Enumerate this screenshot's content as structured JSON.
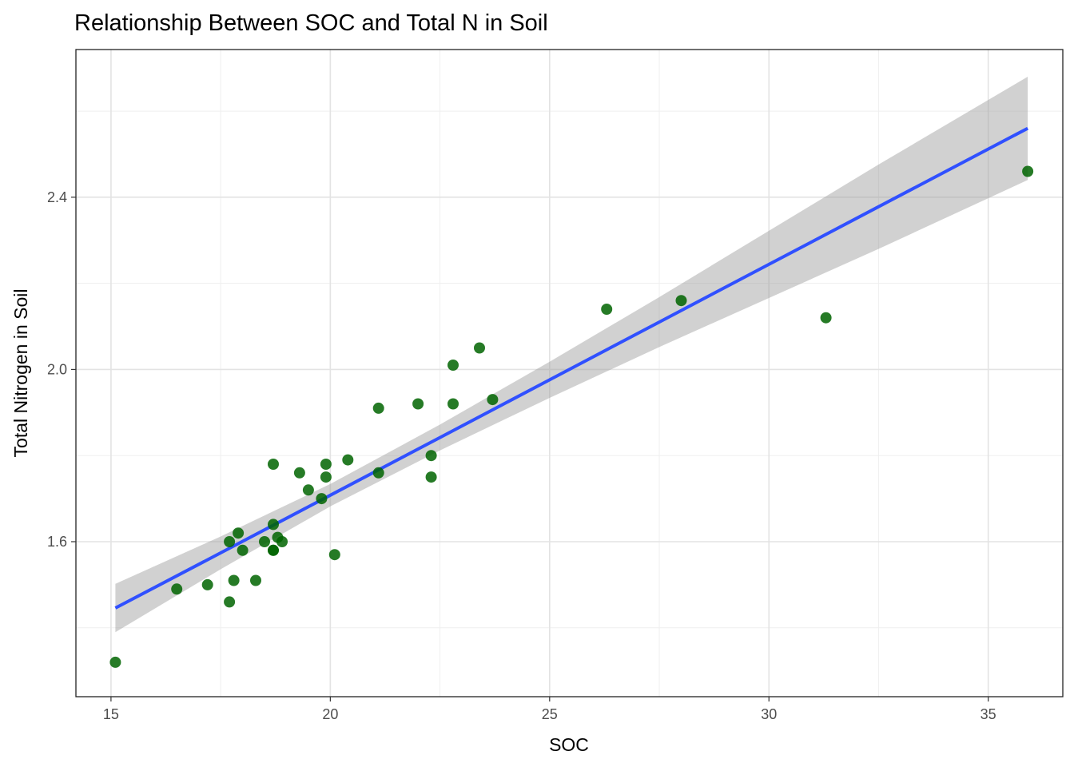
{
  "chart_data": {
    "type": "scatter",
    "title": "Relationship Between SOC and Total N in Soil",
    "xlabel": "SOC",
    "ylabel": "Total Nitrogen in Soil",
    "xlim": [
      14.2,
      36.7
    ],
    "ylim": [
      1.24,
      2.743
    ],
    "x_ticks": [
      15,
      20,
      25,
      30,
      35
    ],
    "x_tick_labels": [
      "15",
      "20",
      "25",
      "30",
      "35"
    ],
    "y_ticks": [
      1.6,
      2.0,
      2.4
    ],
    "y_tick_labels": [
      "1.6",
      "2.0",
      "2.4"
    ],
    "x_minor": [
      17.5,
      22.5,
      27.5,
      32.5
    ],
    "y_minor": [
      1.4,
      1.8,
      2.2,
      2.6
    ],
    "grid": true,
    "legend": "none",
    "colors": {
      "points": "#006400",
      "fit_line": "#3050ff",
      "confidence_band": "#999999"
    },
    "points": [
      [
        15.1,
        1.32
      ],
      [
        16.5,
        1.49
      ],
      [
        17.2,
        1.5
      ],
      [
        17.7,
        1.46
      ],
      [
        17.7,
        1.6
      ],
      [
        17.8,
        1.51
      ],
      [
        17.9,
        1.62
      ],
      [
        18.0,
        1.58
      ],
      [
        18.3,
        1.51
      ],
      [
        18.5,
        1.6
      ],
      [
        18.7,
        1.78
      ],
      [
        18.7,
        1.58
      ],
      [
        18.7,
        1.64
      ],
      [
        18.7,
        1.58
      ],
      [
        18.8,
        1.61
      ],
      [
        18.9,
        1.6
      ],
      [
        19.3,
        1.76
      ],
      [
        19.5,
        1.72
      ],
      [
        19.8,
        1.7
      ],
      [
        19.9,
        1.78
      ],
      [
        19.9,
        1.75
      ],
      [
        20.1,
        1.57
      ],
      [
        20.4,
        1.79
      ],
      [
        21.1,
        1.76
      ],
      [
        21.1,
        1.91
      ],
      [
        22.0,
        1.92
      ],
      [
        22.3,
        1.8
      ],
      [
        22.3,
        1.75
      ],
      [
        22.8,
        2.01
      ],
      [
        22.8,
        1.92
      ],
      [
        23.4,
        2.05
      ],
      [
        23.7,
        1.93
      ],
      [
        26.3,
        2.14
      ],
      [
        28.0,
        2.16
      ],
      [
        31.3,
        2.12
      ],
      [
        35.9,
        2.46
      ]
    ],
    "fit": {
      "method": "linear",
      "x": [
        15.1,
        17.5,
        20.0,
        22.5,
        25.0,
        27.5,
        30.0,
        32.5,
        35.9
      ],
      "y": [
        1.446,
        1.574,
        1.708,
        1.842,
        1.976,
        2.11,
        2.244,
        2.378,
        2.56
      ],
      "lower": [
        1.39,
        1.536,
        1.682,
        1.812,
        1.934,
        2.052,
        2.166,
        2.28,
        2.44
      ],
      "upper": [
        1.502,
        1.612,
        1.734,
        1.872,
        2.018,
        2.168,
        2.322,
        2.476,
        2.68
      ]
    }
  }
}
